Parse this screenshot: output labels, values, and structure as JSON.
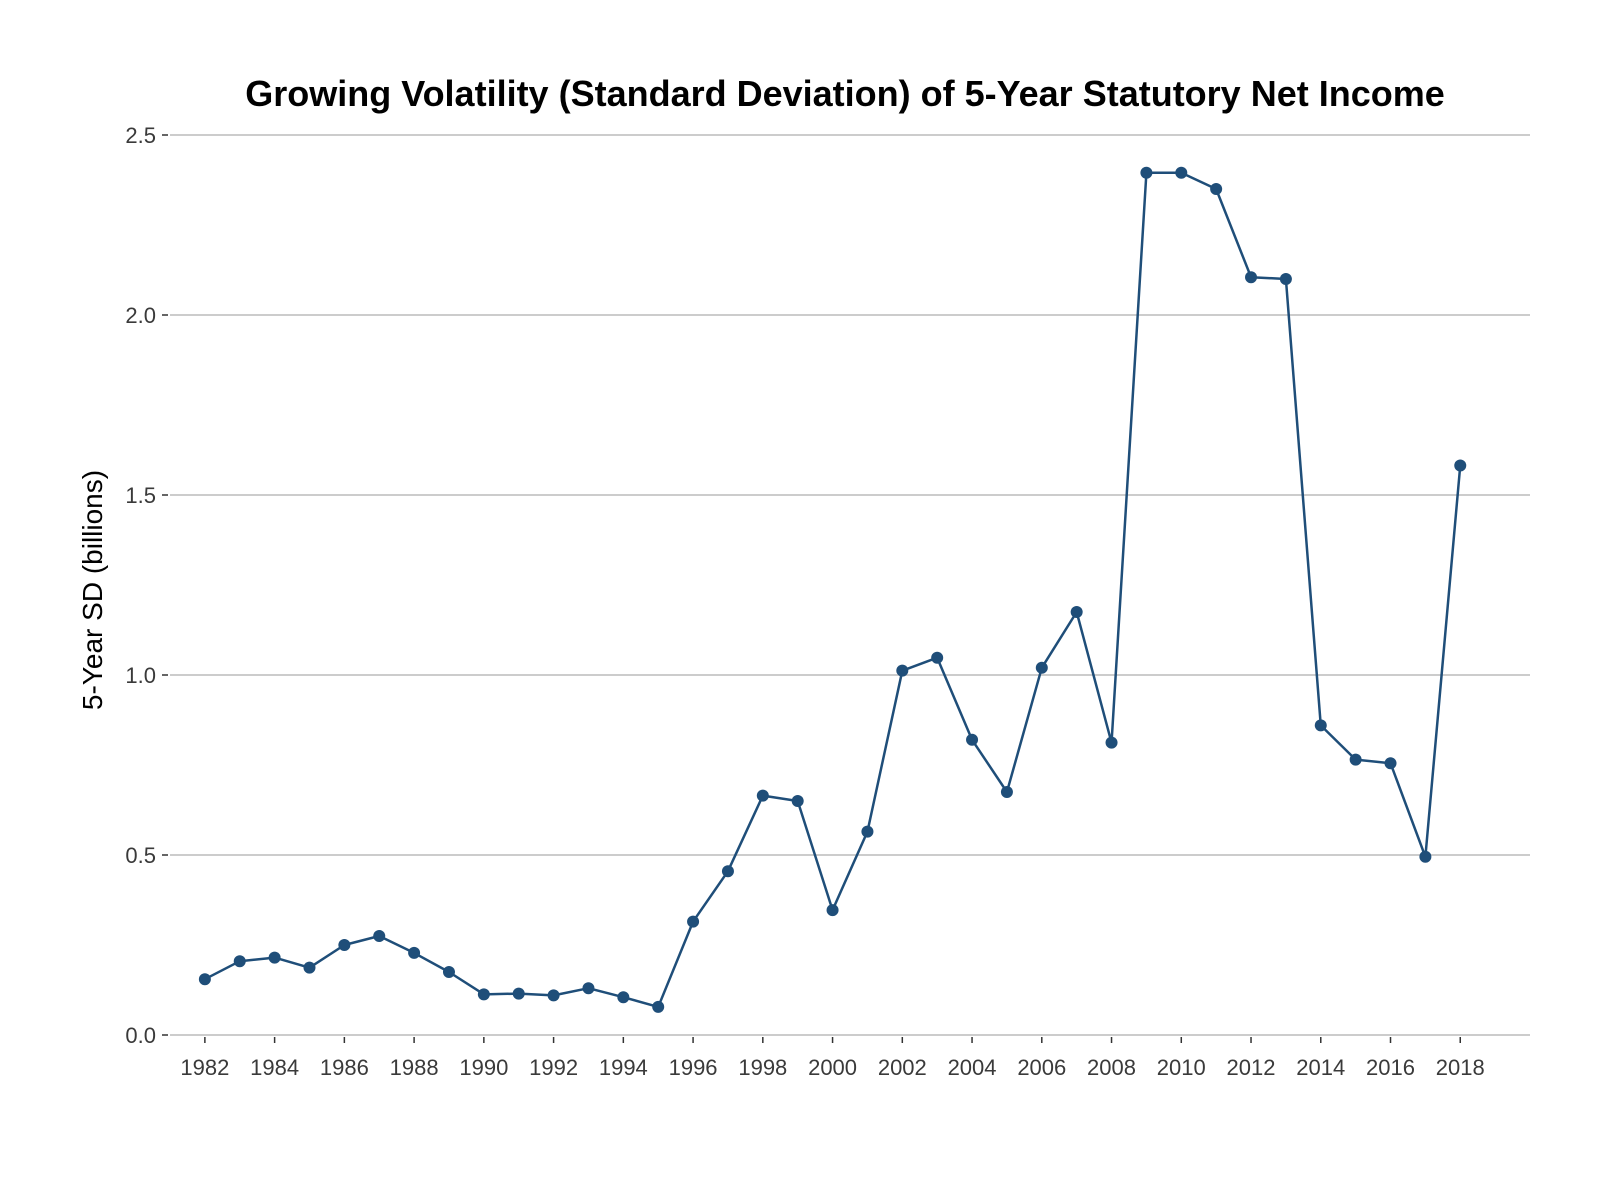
{
  "chart_data": {
    "type": "line",
    "title": "Growing Volatility (Standard Deviation) of 5-Year Statutory Net Income",
    "xlabel": "",
    "ylabel": "5-Year SD (billions)",
    "ylim": [
      0,
      2.5
    ],
    "xlim": [
      1981,
      2020
    ],
    "yticks": [
      0.0,
      0.5,
      1.0,
      1.5,
      2.0,
      2.5
    ],
    "ytick_labels": [
      "0.0",
      "0.5",
      "1.0",
      "1.5",
      "2.0",
      "2.5"
    ],
    "xticks": [
      1982,
      1984,
      1986,
      1988,
      1990,
      1992,
      1994,
      1996,
      1998,
      2000,
      2002,
      2004,
      2006,
      2008,
      2010,
      2012,
      2014,
      2016,
      2018
    ],
    "xtick_labels": [
      "1982",
      "1984",
      "1986",
      "1988",
      "1990",
      "1992",
      "1994",
      "1996",
      "1998",
      "2000",
      "2002",
      "2004",
      "2006",
      "2008",
      "2010",
      "2012",
      "2014",
      "2016",
      "2018"
    ],
    "grid": "horizontal",
    "legend": "none",
    "series": [
      {
        "color": "#1f4e79",
        "x": [
          1982,
          1983,
          1984,
          1985,
          1986,
          1987,
          1988,
          1989,
          1990,
          1991,
          1992,
          1993,
          1994,
          1995,
          1996,
          1997,
          1998,
          1999,
          2000,
          2001,
          2002,
          2003,
          2004,
          2005,
          2006,
          2007,
          2008,
          2009,
          2010,
          2011,
          2012,
          2013,
          2014,
          2015,
          2016,
          2017,
          2018
        ],
        "values": [
          0.155,
          0.205,
          0.215,
          0.187,
          0.25,
          0.275,
          0.228,
          0.175,
          0.113,
          0.115,
          0.11,
          0.13,
          0.105,
          0.078,
          0.315,
          0.455,
          0.665,
          0.65,
          0.347,
          0.565,
          1.012,
          1.048,
          0.82,
          0.675,
          1.02,
          1.175,
          0.812,
          2.395,
          2.395,
          2.35,
          2.105,
          2.1,
          0.86,
          0.765,
          0.755,
          0.495,
          1.582
        ]
      }
    ]
  }
}
